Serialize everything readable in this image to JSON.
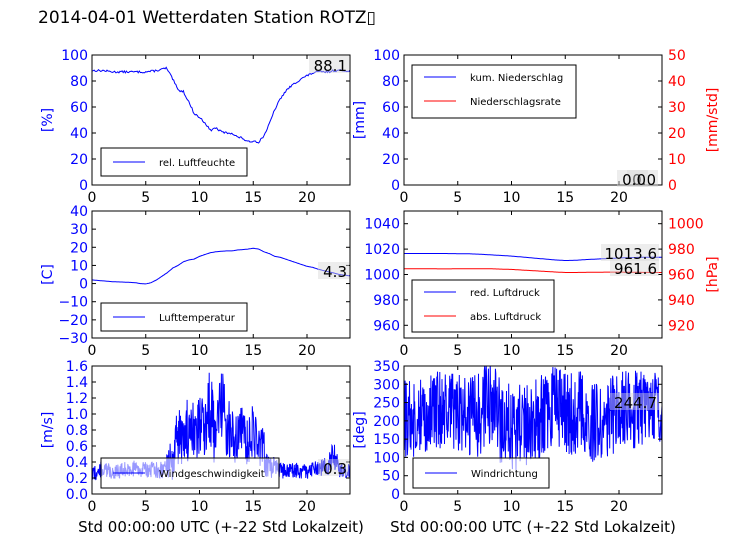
{
  "title": "2014-04-01 Wetterdaten Station ROTZ▯",
  "chart_data": [
    {
      "type": "line",
      "panel": "humidity",
      "ylabel": "[%]",
      "ylim": [
        0,
        100
      ],
      "yticks": [
        "0",
        "20",
        "40",
        "60",
        "80",
        "100"
      ],
      "xlim": [
        0,
        24
      ],
      "xticks": [
        "0",
        "5",
        "10",
        "15",
        "20"
      ],
      "series": [
        {
          "name": "rel. Luftfeuchte",
          "color": "#0000ff",
          "x": [
            0,
            1,
            2,
            3,
            4,
            5,
            6,
            6.5,
            6.9,
            7.2,
            7.6,
            8,
            8.5,
            9,
            9.5,
            10,
            10.5,
            11,
            11.5,
            12,
            12.5,
            13,
            13.5,
            14,
            14.5,
            15,
            15.5,
            16,
            16.5,
            17,
            17.5,
            18,
            18.5,
            19,
            19.5,
            20,
            20.5,
            21,
            21.5,
            22,
            22.5,
            23,
            23.5,
            24
          ],
          "y": [
            88,
            88,
            87,
            87,
            87,
            87,
            88,
            89,
            90,
            86,
            80,
            73,
            72,
            64,
            55,
            52,
            48,
            42,
            44,
            41,
            40,
            40,
            37,
            36,
            33,
            34,
            33,
            38,
            47,
            58,
            66,
            72,
            76,
            79,
            82,
            84,
            86,
            87,
            87,
            87,
            88,
            88,
            88,
            88
          ]
        }
      ],
      "annotations": [
        "88.1"
      ],
      "legend": "lower-center"
    },
    {
      "type": "line",
      "panel": "precipitation",
      "ylabel": "[mm]",
      "ylim": [
        0,
        100
      ],
      "yticks": [
        "0",
        "20",
        "40",
        "60",
        "80",
        "100"
      ],
      "ylabel_right": "[mm/std]",
      "ylim_right": [
        0,
        50
      ],
      "yticks_right": [
        "0",
        "10",
        "20",
        "30",
        "40",
        "50"
      ],
      "xlim": [
        0,
        24
      ],
      "xticks": [
        "0",
        "5",
        "10",
        "15",
        "20"
      ],
      "series": [
        {
          "name": "kum. Niederschlag",
          "color": "#0000ff",
          "x": [
            0,
            24
          ],
          "y": [
            0,
            0
          ]
        },
        {
          "name": "Niederschlagsrate",
          "color": "#ff0000",
          "axis": "right",
          "x": [
            0,
            24
          ],
          "y": [
            0,
            0
          ]
        }
      ],
      "annotations": [
        "0.0",
        "0.0"
      ],
      "legend": "upper-left"
    },
    {
      "type": "line",
      "panel": "temperature",
      "ylabel": "[C]",
      "ylim": [
        -30,
        40
      ],
      "yticks": [
        "−30",
        "−20",
        "−10",
        "0",
        "10",
        "20",
        "30",
        "40"
      ],
      "xlim": [
        0,
        24
      ],
      "xticks": [
        "0",
        "5",
        "10",
        "15",
        "20"
      ],
      "series": [
        {
          "name": "Lufttemperatur",
          "color": "#0000ff",
          "x": [
            0,
            1,
            2,
            3,
            4,
            4.5,
            5,
            5.5,
            6,
            6.5,
            7,
            7.5,
            8,
            8.5,
            9,
            9.5,
            10,
            10.5,
            11,
            11.5,
            12,
            12.5,
            13,
            13.5,
            14,
            14.5,
            15,
            15.5,
            16,
            16.5,
            17,
            17.5,
            18,
            18.5,
            19,
            19.5,
            20,
            20.5,
            21,
            21.5,
            22,
            22.5,
            23,
            23.5,
            24
          ],
          "y": [
            2,
            1.5,
            1,
            0.8,
            0.5,
            0,
            -0.2,
            0.5,
            2,
            4,
            6,
            8.5,
            10,
            12,
            13,
            13.5,
            15,
            16,
            17,
            17.5,
            17.8,
            18,
            18,
            18.5,
            18.7,
            19,
            19.5,
            19,
            17.5,
            16.5,
            15,
            14.5,
            13.5,
            12.5,
            11.5,
            10.5,
            9.5,
            9,
            8,
            7.2,
            6.5,
            5.8,
            5,
            4.6,
            4.3
          ]
        }
      ],
      "annotations": [
        "4.3"
      ],
      "legend": "lower-center"
    },
    {
      "type": "line",
      "panel": "pressure",
      "ylim": [
        950,
        1050
      ],
      "yticks": [
        "960",
        "980",
        "1000",
        "1020",
        "1040"
      ],
      "ylabel_right": "[hPa]",
      "ylim_right": [
        910,
        1010
      ],
      "yticks_right": [
        "920",
        "940",
        "960",
        "980",
        "1000"
      ],
      "xlim": [
        0,
        24
      ],
      "xticks": [
        "0",
        "5",
        "10",
        "15",
        "20"
      ],
      "series": [
        {
          "name": "red. Luftdruck",
          "color": "#0000ff",
          "x": [
            0,
            2,
            4,
            6,
            7,
            8,
            10,
            12,
            14,
            15,
            16,
            17,
            18,
            19,
            20,
            21,
            22,
            23,
            24
          ],
          "y": [
            1016.5,
            1016.5,
            1016.5,
            1016.3,
            1016,
            1015.5,
            1014.5,
            1013,
            1011.5,
            1011,
            1011.2,
            1011.8,
            1012.2,
            1012.6,
            1013,
            1013.3,
            1013.5,
            1013.6,
            1013.6
          ]
        },
        {
          "name": "abs. Luftdruck",
          "color": "#ff0000",
          "axis": "right",
          "x": [
            0,
            2,
            4,
            6,
            7,
            8,
            10,
            12,
            14,
            15,
            16,
            17,
            18,
            19,
            20,
            21,
            22,
            23,
            24
          ],
          "y": [
            964.5,
            964.5,
            964.4,
            964.6,
            964.6,
            964.5,
            964,
            963,
            962,
            961.6,
            961.6,
            961.7,
            961.8,
            961.9,
            961.9,
            961.8,
            961.7,
            961.6,
            961.6
          ]
        }
      ],
      "annotations": [
        "1013.6",
        "961.6"
      ],
      "legend": "lower-center"
    },
    {
      "type": "line",
      "panel": "wind-speed",
      "ylabel": "[m/s]",
      "ylim": [
        0,
        1.6
      ],
      "yticks": [
        "0.0",
        "0.2",
        "0.4",
        "0.6",
        "0.8",
        "1.0",
        "1.2",
        "1.4",
        "1.6"
      ],
      "xlim": [
        0,
        24
      ],
      "xticks": [
        "0",
        "5",
        "10",
        "15",
        "20"
      ],
      "xlabel": "Std 00:00:00 UTC (+-22 Std Lokalzeit)",
      "series": [
        {
          "name": "Windgeschwindigkeit",
          "color": "#0000ff",
          "pattern": "noisy",
          "x": [
            0,
            1,
            2,
            3,
            4,
            5,
            6,
            7,
            7.5,
            8,
            8.5,
            9,
            9.5,
            10,
            10.5,
            11,
            11.5,
            12,
            12.5,
            13,
            13.5,
            14,
            14.5,
            15,
            15.5,
            16,
            16.5,
            17,
            17.5,
            18,
            19,
            20,
            21,
            22,
            22.5,
            23,
            23.5,
            24
          ],
          "y": [
            0.25,
            0.3,
            0.28,
            0.3,
            0.32,
            0.3,
            0.3,
            0.35,
            0.45,
            0.7,
            0.6,
            0.85,
            0.75,
            1.0,
            0.8,
            1.1,
            0.7,
            1.2,
            0.85,
            0.8,
            0.65,
            0.95,
            0.6,
            0.85,
            0.6,
            0.55,
            0.3,
            0.35,
            0.3,
            0.28,
            0.3,
            0.28,
            0.32,
            0.35,
            0.5,
            0.3,
            0.3,
            0.3
          ],
          "amplitude": [
            0.1,
            0.1,
            0.1,
            0.1,
            0.1,
            0.1,
            0.1,
            0.15,
            0.3,
            0.4,
            0.3,
            0.45,
            0.35,
            0.5,
            0.4,
            0.5,
            0.4,
            0.45,
            0.4,
            0.35,
            0.3,
            0.4,
            0.3,
            0.35,
            0.3,
            0.3,
            0.15,
            0.12,
            0.1,
            0.1,
            0.1,
            0.1,
            0.1,
            0.12,
            0.2,
            0.1,
            0.1,
            0.1
          ]
        }
      ],
      "annotations": [
        "0.3"
      ],
      "legend": "lower-center"
    },
    {
      "type": "line",
      "panel": "wind-direction",
      "ylabel": "[deg]",
      "ylim": [
        0,
        350
      ],
      "yticks": [
        "0",
        "50",
        "100",
        "150",
        "200",
        "250",
        "300",
        "350"
      ],
      "xlim": [
        0,
        24
      ],
      "xticks": [
        "0",
        "5",
        "10",
        "15",
        "20"
      ],
      "xlabel": "Std 00:00:00 UTC (+-22 Std Lokalzeit)",
      "series": [
        {
          "name": "Windrichtung",
          "color": "#0000ff",
          "pattern": "noisy",
          "x": [
            0,
            2,
            4,
            6,
            7,
            8,
            9,
            10,
            11,
            12,
            13,
            14,
            15,
            16,
            17,
            18,
            19,
            20,
            21,
            22,
            23,
            24
          ],
          "y": [
            200,
            220,
            230,
            210,
            220,
            250,
            200,
            190,
            200,
            180,
            230,
            250,
            220,
            230,
            200,
            190,
            210,
            230,
            230,
            240,
            230,
            245
          ],
          "amplitude": [
            110,
            110,
            110,
            110,
            120,
            120,
            120,
            130,
            130,
            120,
            120,
            110,
            120,
            120,
            120,
            110,
            110,
            110,
            110,
            110,
            100,
            100
          ]
        }
      ],
      "annotations": [
        "244.7"
      ],
      "legend": "lower-center"
    }
  ]
}
